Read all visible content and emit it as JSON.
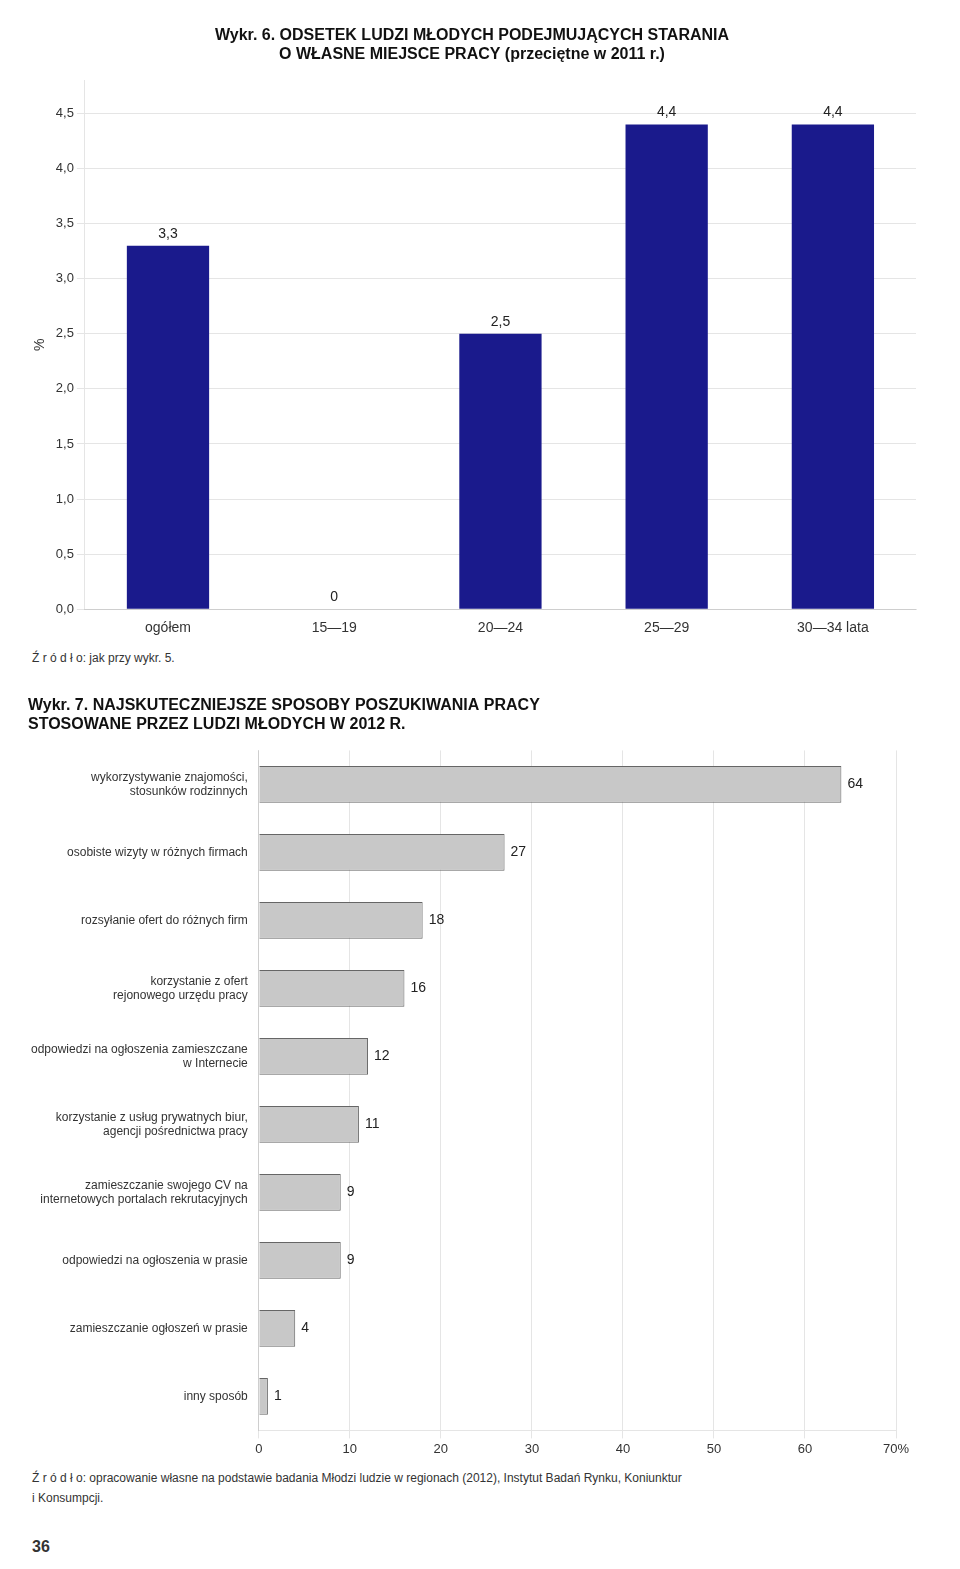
{
  "chart_data": [
    {
      "type": "bar",
      "title": [
        "Wykr. 6. ODSETEK LUDZI MŁODYCH PODEJMUJĄCYCH STARANIA",
        "O WŁASNE MIEJSCE PRACY (przeciętne w 2011 r.)"
      ],
      "categories": [
        "ogółem",
        "15—19",
        "20—24",
        "25—29",
        "30—34 lata"
      ],
      "values": [
        3.3,
        0.0,
        2.5,
        4.4,
        4.4
      ],
      "value_labels": [
        "3,3",
        "0",
        "2,5",
        "4,4",
        "4,4"
      ],
      "data_labels": true,
      "color": "#1a1a8c",
      "ylabel": "%",
      "ylim": [
        0.0,
        4.8
      ],
      "yticks": [
        {
          "value": 0.0,
          "label": "0,0"
        },
        {
          "value": 0.5,
          "label": "0,5"
        },
        {
          "value": 1.0,
          "label": "1,0"
        },
        {
          "value": 1.5,
          "label": "1,5"
        },
        {
          "value": 2.0,
          "label": "2,0"
        },
        {
          "value": 2.5,
          "label": "2,5"
        },
        {
          "value": 3.0,
          "label": "3,0"
        },
        {
          "value": 3.5,
          "label": "3,5"
        },
        {
          "value": 4.0,
          "label": "4,0"
        },
        {
          "value": 4.5,
          "label": "4,5"
        }
      ],
      "grid": true,
      "annotations": [
        "Ź r ó d ł o: jak przy wykr. 5."
      ]
    },
    {
      "type": "bar",
      "orientation": "horizontal",
      "title": [
        "Wykr. 7. NAJSKUTECZNIEJSZE SPOSOBY POSZUKIWANIA PRACY",
        "STOSOWANE PRZEZ LUDZI MŁODYCH W 2012 R."
      ],
      "categories": [
        "wykorzystywanie znajomości,\nstosunków rodzinnych",
        "osobiste wizyty w różnych firmach",
        "rozsyłanie ofert do różnych firm",
        "korzystanie z ofert\nrejonowego urzędu pracy",
        "odpowiedzi na ogłoszenia zamieszczane\nw Internecie",
        "korzystanie z usług prywatnych biur,\nagencji pośrednictwa pracy",
        "zamieszczanie swojego CV na\ninternetowych portalach rekrutacyjnych",
        "odpowiedzi na ogłoszenia w prasie",
        "zamieszczanie ogłoszeń w prasie",
        "inny sposób"
      ],
      "values": [
        64,
        27,
        18,
        16,
        12,
        11,
        9,
        9,
        4,
        1
      ],
      "data_labels": true,
      "color": "#c8c8c8",
      "xlim": [
        0,
        70
      ],
      "xticks": [
        0,
        10,
        20,
        30,
        40,
        50,
        60,
        {
          "value": 70,
          "label": "70%"
        }
      ],
      "grid": true,
      "annotations": [
        "Ź r ó d ł o: opracowanie własne na podstawie badania Młodzi ludzie w regionach (2012), Instytut Badań Rynku, Koniunktur",
        "i Konsumpcji."
      ]
    }
  ],
  "annotations": [
    "36"
  ]
}
